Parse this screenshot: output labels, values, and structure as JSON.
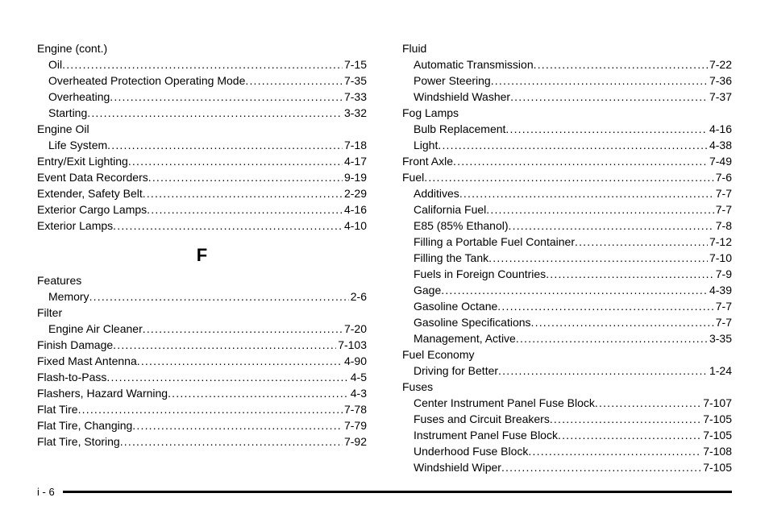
{
  "page_number": "i - 6",
  "left_column": {
    "groups": [
      {
        "heading": "Engine (cont.)",
        "items": [
          {
            "label": "Oil",
            "page": "7-15",
            "sub": true
          },
          {
            "label": "Overheated Protection Operating Mode",
            "page": "7-35",
            "sub": true
          },
          {
            "label": "Overheating",
            "page": "7-33",
            "sub": true
          },
          {
            "label": "Starting",
            "page": "3-32",
            "sub": true
          }
        ]
      },
      {
        "heading": "Engine Oil",
        "items": [
          {
            "label": "Life System",
            "page": "7-18",
            "sub": true
          }
        ]
      },
      {
        "heading": null,
        "items": [
          {
            "label": "Entry/Exit Lighting",
            "page": "4-17",
            "sub": false
          },
          {
            "label": "Event Data Recorders",
            "page": "9-19",
            "sub": false
          },
          {
            "label": "Extender, Safety Belt",
            "page": "2-29",
            "sub": false
          },
          {
            "label": "Exterior Cargo Lamps",
            "page": "4-16",
            "sub": false
          },
          {
            "label": "Exterior Lamps",
            "page": "4-10",
            "sub": false
          }
        ]
      }
    ],
    "section_letter": "F",
    "groups_after": [
      {
        "heading": "Features",
        "items": [
          {
            "label": "Memory",
            "page": "2-6",
            "sub": true
          }
        ]
      },
      {
        "heading": "Filter",
        "items": [
          {
            "label": "Engine Air Cleaner",
            "page": "7-20",
            "sub": true
          }
        ]
      },
      {
        "heading": null,
        "items": [
          {
            "label": "Finish Damage",
            "page": "7-103",
            "sub": false
          },
          {
            "label": "Fixed Mast Antenna",
            "page": "4-90",
            "sub": false
          },
          {
            "label": "Flash-to-Pass",
            "page": "4-5",
            "sub": false
          },
          {
            "label": "Flashers, Hazard Warning",
            "page": "4-3",
            "sub": false
          },
          {
            "label": "Flat Tire",
            "page": "7-78",
            "sub": false
          },
          {
            "label": "Flat Tire, Changing",
            "page": "7-79",
            "sub": false
          },
          {
            "label": "Flat Tire, Storing",
            "page": "7-92",
            "sub": false
          }
        ]
      }
    ]
  },
  "right_column": {
    "groups": [
      {
        "heading": "Fluid",
        "items": [
          {
            "label": "Automatic Transmission",
            "page": "7-22",
            "sub": true
          },
          {
            "label": "Power Steering",
            "page": "7-36",
            "sub": true
          },
          {
            "label": "Windshield Washer",
            "page": "7-37",
            "sub": true
          }
        ]
      },
      {
        "heading": "Fog Lamps",
        "items": [
          {
            "label": "Bulb Replacement",
            "page": "4-16",
            "sub": true
          },
          {
            "label": "Light",
            "page": "4-38",
            "sub": true
          }
        ]
      },
      {
        "heading": null,
        "items": [
          {
            "label": "Front Axle",
            "page": "7-49",
            "sub": false
          }
        ]
      },
      {
        "heading_entry": {
          "label": "Fuel",
          "page": "7-6"
        },
        "items": [
          {
            "label": "Additives",
            "page": "7-7",
            "sub": true
          },
          {
            "label": "California Fuel",
            "page": "7-7",
            "sub": true
          },
          {
            "label": "E85 (85% Ethanol)",
            "page": "7-8",
            "sub": true
          },
          {
            "label": "Filling a Portable Fuel Container",
            "page": "7-12",
            "sub": true
          },
          {
            "label": "Filling the Tank",
            "page": "7-10",
            "sub": true
          },
          {
            "label": "Fuels in Foreign Countries",
            "page": "7-9",
            "sub": true
          },
          {
            "label": "Gage",
            "page": "4-39",
            "sub": true
          },
          {
            "label": "Gasoline Octane",
            "page": "7-7",
            "sub": true
          },
          {
            "label": "Gasoline Specifications",
            "page": "7-7",
            "sub": true
          },
          {
            "label": "Management, Active",
            "page": "3-35",
            "sub": true
          }
        ]
      },
      {
        "heading": "Fuel Economy",
        "items": [
          {
            "label": "Driving for Better",
            "page": "1-24",
            "sub": true
          }
        ]
      },
      {
        "heading": "Fuses",
        "items": [
          {
            "label": "Center Instrument Panel Fuse Block",
            "page": "7-107",
            "sub": true
          },
          {
            "label": "Fuses and Circuit Breakers",
            "page": "7-105",
            "sub": true
          },
          {
            "label": "Instrument Panel Fuse Block",
            "page": "7-105",
            "sub": true
          },
          {
            "label": "Underhood Fuse Block",
            "page": "7-108",
            "sub": true
          },
          {
            "label": "Windshield Wiper",
            "page": "7-105",
            "sub": true
          }
        ]
      }
    ]
  }
}
